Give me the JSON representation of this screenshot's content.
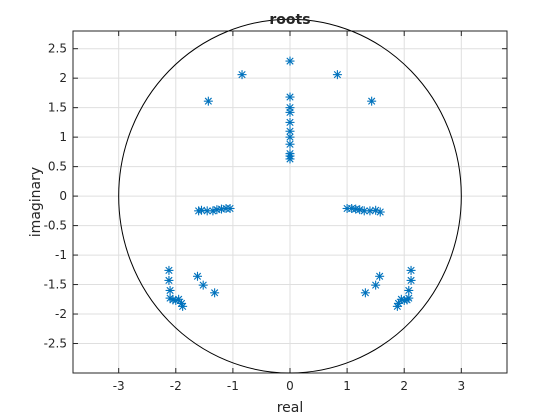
{
  "chart_data": {
    "type": "scatter",
    "title": "roots",
    "xlabel": "real",
    "ylabel": "imaginary",
    "xlim": [
      -3.8,
      3.8
    ],
    "ylim": [
      -3.0,
      2.8
    ],
    "xticks": [
      -3,
      -2,
      -1,
      0,
      1,
      2,
      3
    ],
    "xtick_labels": [
      "-3",
      "-2",
      "-1",
      "0",
      "1",
      "2",
      "3"
    ],
    "yticks": [
      -2.5,
      -2,
      -1.5,
      -1,
      -0.5,
      0,
      0.5,
      1,
      1.5,
      2,
      2.5
    ],
    "ytick_labels": [
      "-2.5",
      "-2",
      "-1.5",
      "-1",
      "-0.5",
      "0",
      "0.5",
      "1",
      "1.5",
      "2",
      "2.5"
    ],
    "grid": true,
    "marker": "asterisk",
    "marker_color": "#0072bd",
    "reference_circle": {
      "center": [
        0,
        0
      ],
      "radius": 3,
      "color": "#000000"
    },
    "series": [
      {
        "x": [
          0.0,
          0.0,
          0.0,
          0.0,
          0.0,
          0.0,
          0.0,
          0.0,
          0.0,
          0.0,
          0.0,
          -0.84,
          0.83,
          -1.43,
          1.43,
          -1.6,
          -1.55,
          -1.45,
          -1.35,
          -1.28,
          -1.2,
          -1.12,
          -1.05,
          1.0,
          1.08,
          1.15,
          1.22,
          1.3,
          1.4,
          1.5,
          1.58,
          -2.12,
          -2.12,
          -2.1,
          -2.1,
          -2.05,
          -2.0,
          -1.95,
          -1.9,
          -1.88,
          -1.62,
          -1.52,
          -1.32,
          2.12,
          2.12,
          2.08,
          2.08,
          2.05,
          2.0,
          1.95,
          1.9,
          1.88,
          1.57,
          1.5,
          1.32
        ],
        "y": [
          2.29,
          1.68,
          1.5,
          1.42,
          1.25,
          1.1,
          1.0,
          0.88,
          0.72,
          0.68,
          0.63,
          2.06,
          2.06,
          1.61,
          1.61,
          -0.25,
          -0.24,
          -0.25,
          -0.25,
          -0.23,
          -0.22,
          -0.21,
          -0.21,
          -0.21,
          -0.21,
          -0.22,
          -0.23,
          -0.25,
          -0.25,
          -0.24,
          -0.27,
          -1.26,
          -1.43,
          -1.6,
          -1.73,
          -1.76,
          -1.77,
          -1.75,
          -1.82,
          -1.87,
          -1.36,
          -1.51,
          -1.64,
          -1.26,
          -1.43,
          -1.6,
          -1.73,
          -1.76,
          -1.77,
          -1.75,
          -1.82,
          -1.87,
          -1.36,
          -1.51,
          -1.64
        ]
      }
    ]
  }
}
